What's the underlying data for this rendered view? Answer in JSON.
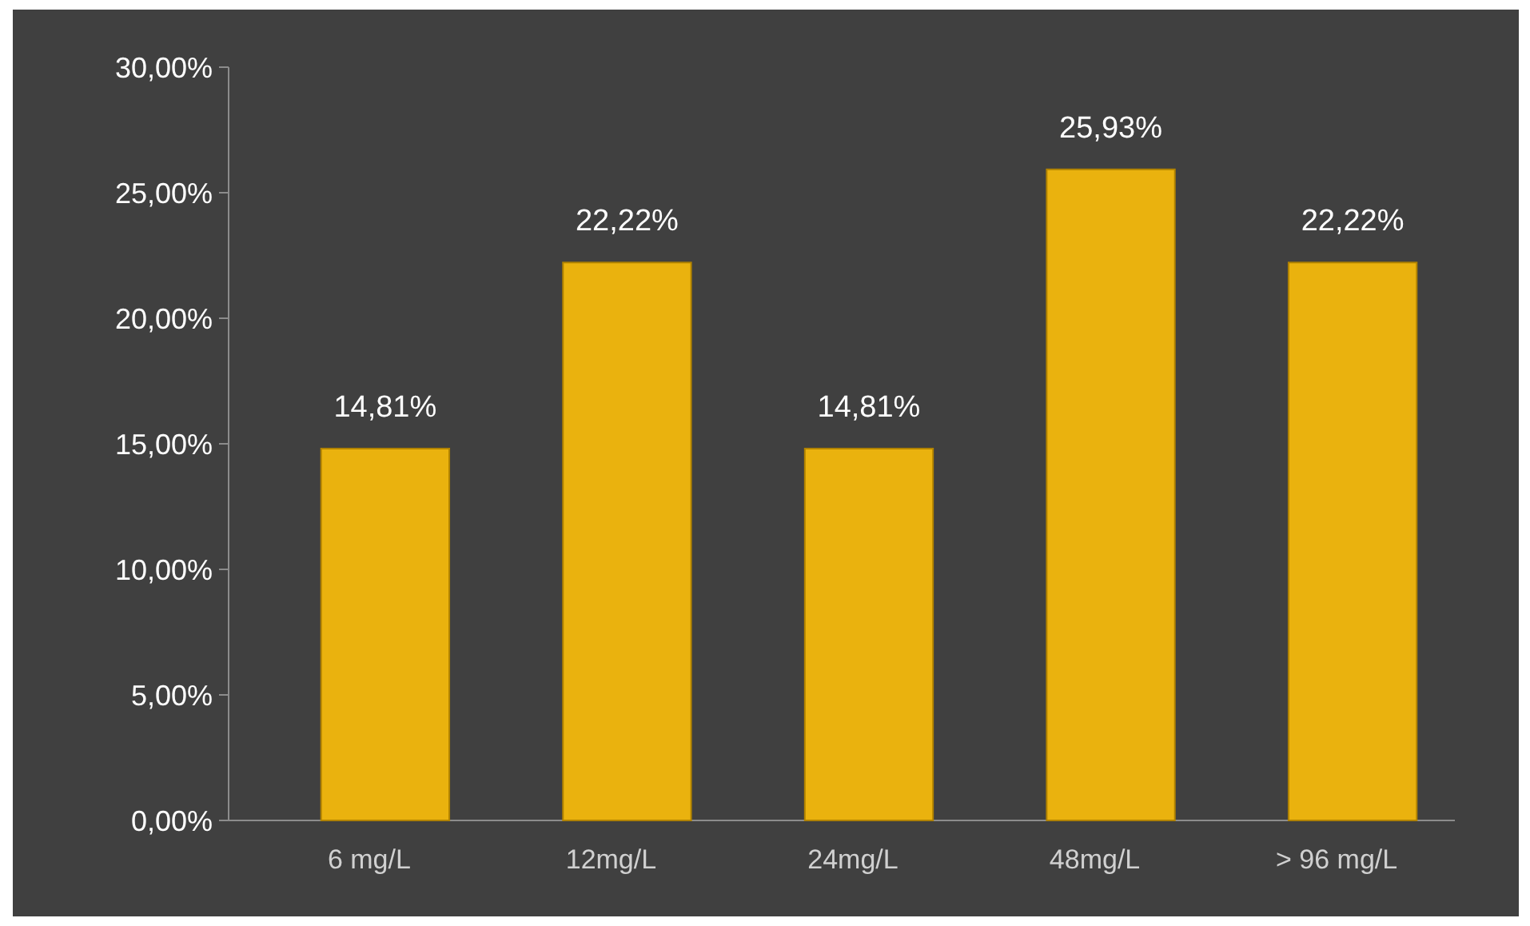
{
  "chart_data": {
    "type": "bar",
    "categories": [
      "6 mg/L",
      "12mg/L",
      "24mg/L",
      "48mg/L",
      "> 96 mg/L"
    ],
    "values": [
      14.81,
      22.22,
      14.81,
      25.93,
      22.22
    ],
    "value_labels": [
      "14,81%",
      "22,22%",
      "14,81%",
      "25,93%",
      "22,22%"
    ],
    "color": "#eab20e",
    "ylim": [
      0,
      30
    ],
    "yticks": [
      {
        "value": 0,
        "label": "0,00%"
      },
      {
        "value": 5,
        "label": "5,00%"
      },
      {
        "value": 10,
        "label": "10,00%"
      },
      {
        "value": 15,
        "label": "15,00%"
      },
      {
        "value": 20,
        "label": "20,00%"
      },
      {
        "value": 25,
        "label": "25,00%"
      },
      {
        "value": 30,
        "label": "30,00%"
      }
    ]
  }
}
